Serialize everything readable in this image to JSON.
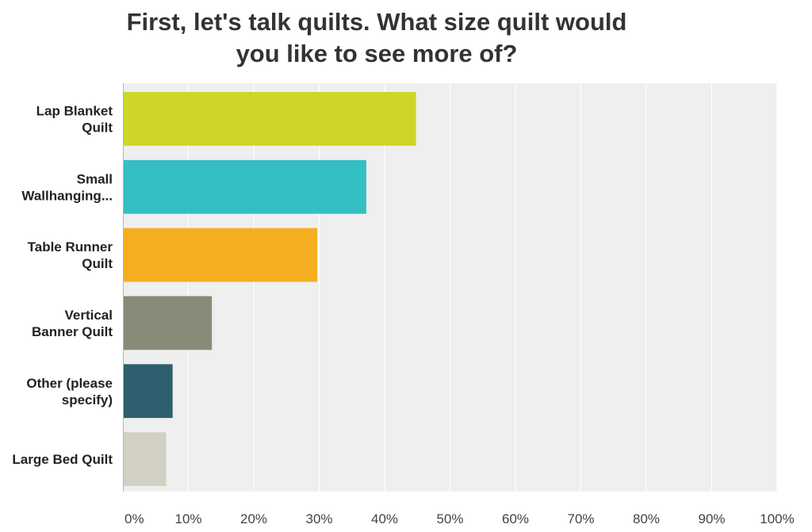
{
  "chart_data": {
    "type": "bar",
    "orientation": "horizontal",
    "title": "First, let's talk quilts. What size quilt would you like to see more of?",
    "title_lines": [
      "First, let's talk quilts. What size quilt would",
      "you like to see more of?"
    ],
    "categories": [
      [
        "Lap Blanket",
        "Quilt"
      ],
      [
        "Small",
        "Wallhanging..."
      ],
      [
        "Table Runner",
        "Quilt"
      ],
      [
        "Vertical",
        "Banner Quilt"
      ],
      [
        "Other (please",
        "specify)"
      ],
      [
        "Large Bed Quilt"
      ]
    ],
    "values": [
      44.8,
      37.2,
      29.7,
      13.6,
      7.6,
      6.6
    ],
    "colors": [
      "#CDD629",
      "#34BFC2",
      "#F6AE21",
      "#8A8A78",
      "#2F5F6E",
      "#D2D0C3"
    ],
    "x_ticks": [
      "0%",
      "10%",
      "20%",
      "30%",
      "40%",
      "50%",
      "60%",
      "70%",
      "80%",
      "90%",
      "100%"
    ],
    "xlim": [
      0,
      100
    ],
    "grid": true,
    "xlabel": "",
    "ylabel": ""
  }
}
